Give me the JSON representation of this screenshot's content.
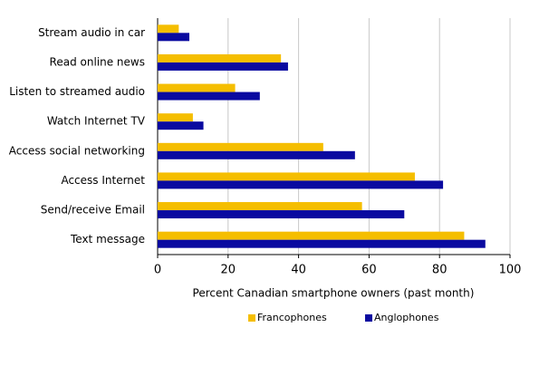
{
  "chart_data": {
    "type": "hbar",
    "x_label": "Percent Canadian smartphone owners (past month)",
    "categories": [
      "Stream audio in car",
      "Read online news",
      "Listen to streamed audio",
      "Watch Internet TV",
      "Access social networking",
      "Access Internet",
      "Send/receive Email",
      "Text message"
    ],
    "series": [
      {
        "name": "Francophones",
        "color": "#f5be00",
        "values": [
          6,
          35,
          22,
          10,
          47,
          73,
          58,
          87
        ]
      },
      {
        "name": "Anglophones",
        "color": "#0a0aa0",
        "values": [
          9,
          37,
          29,
          13,
          56,
          81,
          70,
          93
        ]
      }
    ],
    "xlim": [
      0,
      100
    ],
    "xticks": [
      0,
      20,
      40,
      60,
      80,
      100
    ],
    "grid": true,
    "legend": "bottom"
  }
}
